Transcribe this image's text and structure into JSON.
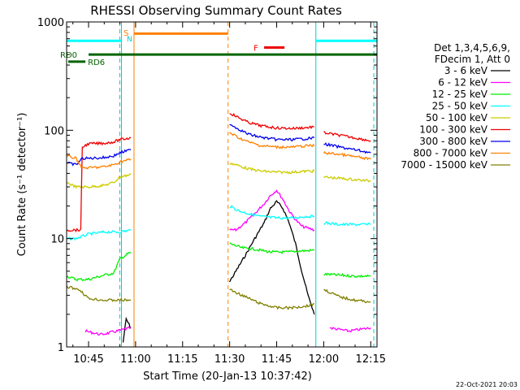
{
  "chart_data": {
    "type": "line",
    "title": "RHESSI Observing Summary Count Rates",
    "xlabel": "Start Time (20-Jan-13 10:37:42)",
    "ylabel": "Count Rate (s⁻¹ detector⁻¹)",
    "yscale": "log",
    "ylim": [
      1,
      1000
    ],
    "xlim_minutes": [
      38,
      137
    ],
    "x_ticks": [
      {
        "minute": 45,
        "label": "10:45"
      },
      {
        "minute": 60,
        "label": "11:00"
      },
      {
        "minute": 75,
        "label": "11:15"
      },
      {
        "minute": 90,
        "label": "11:30"
      },
      {
        "minute": 105,
        "label": "11:45"
      },
      {
        "minute": 120,
        "label": "12:00"
      },
      {
        "minute": 135,
        "label": "12:15"
      }
    ],
    "y_ticks": [
      {
        "value": 1,
        "label": "1"
      },
      {
        "value": 10,
        "label": "10"
      },
      {
        "value": 100,
        "label": "100"
      },
      {
        "value": 1000,
        "label": "1000"
      }
    ],
    "legend": {
      "header": [
        "Det 1,3,4,5,6,9,",
        "FDecim 1, Att 0"
      ],
      "placement": "right"
    },
    "series": [
      {
        "name": "3 - 6 keV",
        "color": "#000000",
        "segments": [
          [
            [
              56,
              1.1
            ],
            [
              57,
              1.8
            ],
            [
              58.5,
              1.5
            ]
          ],
          [
            [
              90,
              4
            ],
            [
              92,
              5
            ],
            [
              95,
              7
            ],
            [
              98,
              10
            ],
            [
              101,
              14
            ],
            [
              103,
              19
            ],
            [
              105,
              22
            ],
            [
              107,
              19
            ],
            [
              109,
              14
            ],
            [
              111,
              9
            ],
            [
              113,
              5
            ],
            [
              115,
              3
            ],
            [
              117,
              2
            ]
          ]
        ]
      },
      {
        "name": "6 - 12 keV",
        "color": "#ff00ff",
        "segments": [
          [
            [
              44,
              1.4
            ],
            [
              49,
              1.3
            ],
            [
              54,
              1.4
            ],
            [
              58.5,
              1.5
            ]
          ],
          [
            [
              90,
              12
            ],
            [
              92,
              12
            ],
            [
              95,
              14
            ],
            [
              98,
              17
            ],
            [
              101,
              21
            ],
            [
              103,
              25
            ],
            [
              105,
              28
            ],
            [
              107,
              23
            ],
            [
              109,
              18
            ],
            [
              111,
              15
            ],
            [
              113,
              13
            ],
            [
              117,
              12
            ]
          ],
          [
            [
              122,
              1.5
            ],
            [
              128,
              1.4
            ],
            [
              135,
              1.5
            ]
          ]
        ]
      },
      {
        "name": "12 - 25 keV",
        "color": "#00ee00",
        "segments": [
          [
            [
              38,
              4.5
            ],
            [
              41,
              4.2
            ],
            [
              45,
              4.2
            ],
            [
              50,
              4.6
            ],
            [
              53,
              4.8
            ],
            [
              55,
              6.5
            ],
            [
              58.5,
              7.5
            ]
          ],
          [
            [
              90,
              9
            ],
            [
              94,
              8.2
            ],
            [
              98,
              8
            ],
            [
              103,
              7.5
            ],
            [
              108,
              7.5
            ],
            [
              113,
              7.7
            ],
            [
              117,
              7.8
            ]
          ],
          [
            [
              120,
              4.7
            ],
            [
              125,
              4.6
            ],
            [
              130,
              4.5
            ],
            [
              135,
              4.5
            ]
          ]
        ]
      },
      {
        "name": "25 - 50 keV",
        "color": "#00ffff",
        "segments": [
          [
            [
              38,
              10
            ],
            [
              41,
              10
            ],
            [
              45,
              11
            ],
            [
              50,
              11.5
            ],
            [
              53,
              11.5
            ],
            [
              55,
              11.5
            ],
            [
              58.5,
              12
            ]
          ],
          [
            [
              90,
              20
            ],
            [
              93,
              18
            ],
            [
              96,
              17
            ],
            [
              100,
              16
            ],
            [
              105,
              15.5
            ],
            [
              110,
              15.5
            ],
            [
              114,
              16
            ],
            [
              117,
              16
            ]
          ],
          [
            [
              120,
              14
            ],
            [
              125,
              13.5
            ],
            [
              130,
              13.5
            ],
            [
              135,
              13.5
            ]
          ]
        ]
      },
      {
        "name": "50 - 100 keV",
        "color": "#cccc00",
        "segments": [
          [
            [
              38,
              33
            ],
            [
              41,
              30
            ],
            [
              43,
              30
            ],
            [
              45,
              30
            ],
            [
              50,
              31
            ],
            [
              53,
              33
            ],
            [
              55,
              37
            ],
            [
              58.5,
              39
            ]
          ],
          [
            [
              90,
              50
            ],
            [
              93,
              47
            ],
            [
              96,
              44
            ],
            [
              100,
              42
            ],
            [
              105,
              41
            ],
            [
              110,
              41
            ],
            [
              115,
              42
            ],
            [
              117,
              42
            ]
          ],
          [
            [
              120,
              37
            ],
            [
              125,
              36
            ],
            [
              130,
              35
            ],
            [
              135,
              34
            ]
          ]
        ]
      },
      {
        "name": "100 - 300 keV",
        "color": "#ee0000",
        "segments": [
          [
            [
              38,
              12
            ],
            [
              41,
              12
            ],
            [
              42.5,
              12
            ],
            [
              43,
              70
            ],
            [
              45,
              75
            ],
            [
              50,
              76
            ],
            [
              53,
              78
            ],
            [
              55,
              82
            ],
            [
              58.5,
              85
            ]
          ],
          [
            [
              90,
              145
            ],
            [
              93,
              130
            ],
            [
              96,
              118
            ],
            [
              100,
              110
            ],
            [
              105,
              105
            ],
            [
              110,
              104
            ],
            [
              115,
              106
            ],
            [
              117,
              108
            ]
          ],
          [
            [
              120,
              95
            ],
            [
              125,
              90
            ],
            [
              130,
              85
            ],
            [
              135,
              80
            ]
          ]
        ]
      },
      {
        "name": "300 - 800 keV",
        "color": "#0000ee",
        "segments": [
          [
            [
              38,
              50
            ],
            [
              41,
              48
            ],
            [
              43,
              55
            ],
            [
              45,
              55
            ],
            [
              50,
              56
            ],
            [
              53,
              58
            ],
            [
              55,
              62
            ],
            [
              58.5,
              66
            ]
          ],
          [
            [
              90,
              115
            ],
            [
              93,
              102
            ],
            [
              96,
              92
            ],
            [
              100,
              86
            ],
            [
              105,
              82
            ],
            [
              110,
              82
            ],
            [
              115,
              84
            ],
            [
              117,
              85
            ]
          ],
          [
            [
              120,
              75
            ],
            [
              125,
              70
            ],
            [
              130,
              66
            ],
            [
              135,
              62
            ]
          ]
        ]
      },
      {
        "name": "800 - 7000 keV",
        "color": "#ff8000",
        "segments": [
          [
            [
              38,
              58
            ],
            [
              41,
              55
            ],
            [
              43,
              45
            ],
            [
              45,
              45
            ],
            [
              50,
              46
            ],
            [
              53,
              48
            ],
            [
              55,
              51
            ],
            [
              58.5,
              54
            ]
          ],
          [
            [
              90,
              95
            ],
            [
              93,
              85
            ],
            [
              96,
              78
            ],
            [
              100,
              72
            ],
            [
              105,
              70
            ],
            [
              110,
              70
            ],
            [
              115,
              72
            ],
            [
              117,
              72
            ]
          ],
          [
            [
              120,
              62
            ],
            [
              125,
              60
            ],
            [
              130,
              57
            ],
            [
              135,
              54
            ]
          ]
        ]
      },
      {
        "name": "7000 - 15000 keV",
        "color": "#808000",
        "segments": [
          [
            [
              38,
              3.6
            ],
            [
              42,
              3.4
            ],
            [
              45,
              2.8
            ],
            [
              50,
              2.7
            ],
            [
              55,
              2.7
            ],
            [
              58.5,
              2.7
            ]
          ],
          [
            [
              90,
              3.4
            ],
            [
              95,
              2.9
            ],
            [
              100,
              2.5
            ],
            [
              105,
              2.3
            ],
            [
              110,
              2.3
            ],
            [
              115,
              2.4
            ],
            [
              117,
              2.5
            ]
          ],
          [
            [
              120,
              3.4
            ],
            [
              125,
              2.9
            ],
            [
              130,
              2.7
            ],
            [
              135,
              2.6
            ]
          ]
        ]
      }
    ],
    "annotations": {
      "state_bars": [
        {
          "label": "RD0",
          "color": "#006400",
          "y": 500,
          "from": 45,
          "to": 137
        },
        {
          "label": "RD6",
          "color": "#006400",
          "y": 430,
          "from": 38,
          "to": 44
        }
      ],
      "flags": [
        {
          "label": "S",
          "color": "#ff8000"
        },
        {
          "label": "N",
          "color": "#00cccc"
        },
        {
          "label": "F",
          "color": "#ee0000"
        }
      ],
      "night_bars": [
        {
          "from": 38,
          "to": 55.5,
          "y": 670
        },
        {
          "from": 117.5,
          "to": 137,
          "y": 670
        }
      ],
      "saa_bar": {
        "from": 59.5,
        "to": 89.5,
        "y": 780
      },
      "flare_bar": {
        "from": 101,
        "to": 107.5,
        "y": 580
      },
      "night_lines_solid": [
        55.5,
        117.5
      ],
      "night_lines_dashed": [
        55.5,
        136.5
      ],
      "saa_lines_solid": [
        59.5
      ],
      "saa_lines_dashed": [
        89.5
      ]
    }
  },
  "footer": {
    "timestamp": "22-Oct-2021 20:03"
  }
}
